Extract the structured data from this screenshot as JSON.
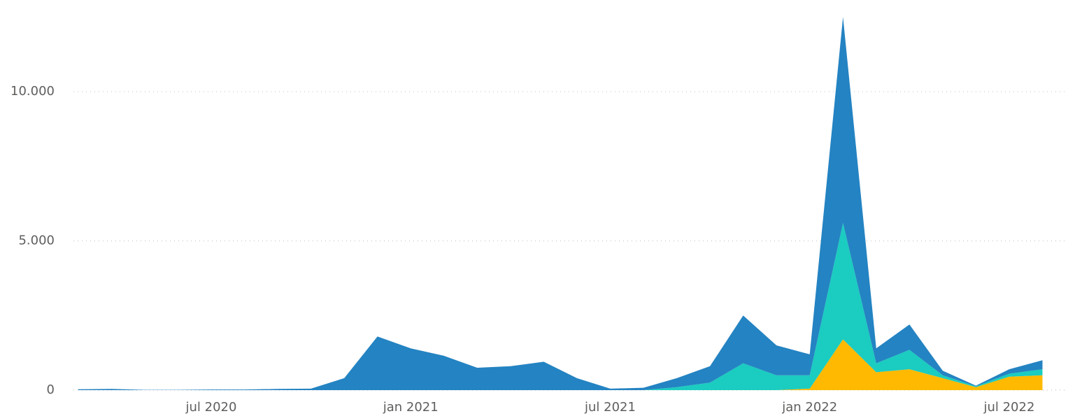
{
  "chart_data": {
    "type": "stacked_area",
    "x": [
      "2020-03",
      "2020-04",
      "2020-05",
      "2020-06",
      "2020-07",
      "2020-08",
      "2020-09",
      "2020-10",
      "2020-11",
      "2020-12",
      "2021-01",
      "2021-02",
      "2021-03",
      "2021-04",
      "2021-05",
      "2021-06",
      "2021-07",
      "2021-08",
      "2021-09",
      "2021-10",
      "2021-11",
      "2021-12",
      "2022-01",
      "2022-02",
      "2022-03",
      "2022-04",
      "2022-05",
      "2022-06",
      "2022-07",
      "2022-08"
    ],
    "series": [
      {
        "color": "#ffb900",
        "values": [
          0,
          0,
          0,
          0,
          0,
          0,
          0,
          0,
          0,
          0,
          0,
          0,
          0,
          0,
          0,
          0,
          0,
          0,
          0,
          0,
          0,
          0,
          50,
          1700,
          600,
          700,
          400,
          100,
          450,
          500
        ]
      },
      {
        "color": "#1bccc0",
        "values": [
          0,
          0,
          0,
          0,
          0,
          0,
          0,
          0,
          0,
          0,
          0,
          0,
          0,
          0,
          0,
          0,
          0,
          0,
          100,
          250,
          900,
          500,
          450,
          3900,
          300,
          650,
          100,
          30,
          100,
          200
        ]
      },
      {
        "color": "#2483c2",
        "values": [
          30,
          40,
          10,
          10,
          20,
          20,
          40,
          50,
          400,
          1800,
          1400,
          1150,
          750,
          800,
          950,
          400,
          50,
          80,
          300,
          550,
          1600,
          1000,
          700,
          6900,
          500,
          850,
          150,
          20,
          150,
          300
        ]
      }
    ],
    "xticks": [
      {
        "value": "2020-07",
        "label": "jul 2020"
      },
      {
        "value": "2021-01",
        "label": "jan 2021"
      },
      {
        "value": "2021-07",
        "label": "jul 2021"
      },
      {
        "value": "2022-01",
        "label": "jan 2022"
      },
      {
        "value": "2022-07",
        "label": "jul 2022"
      }
    ],
    "ylim": [
      0,
      13000
    ],
    "yticks": [
      0,
      {
        "value": 5000,
        "label": "5.000"
      },
      {
        "value": 10000,
        "label": "10.000"
      }
    ],
    "grid": true
  }
}
